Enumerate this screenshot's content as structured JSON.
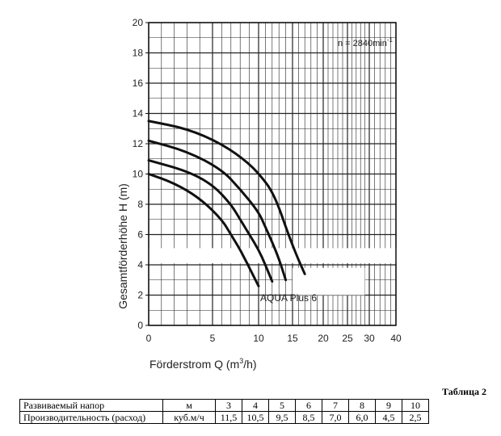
{
  "chart_data": {
    "type": "line",
    "annotation": "n = 2840min",
    "annotation_sup": "-1",
    "xlabel": "Förderstrom  Q (m",
    "xlabel_sup": "3",
    "xlabel_end": "/h)",
    "ylabel": "Gesamtförderhöhe   H (m)",
    "y_ticks": [
      "0",
      "2",
      "4",
      "6",
      "8",
      "10",
      "12",
      "14",
      "16",
      "18",
      "20"
    ],
    "x_ticks": [
      "0",
      "5",
      "10",
      "15",
      "20",
      "25",
      "30",
      "40"
    ],
    "ylim": [
      0,
      20
    ],
    "x_scale": "non-linear (expanded 0–15, compressed 15–40)",
    "grid": true,
    "curve_label": "AQUA  Plus 6",
    "series": [
      {
        "x": [
          0,
          2,
          4,
          6,
          7,
          8,
          8.5,
          9,
          9.5,
          10
        ],
        "y": [
          10,
          9.4,
          8.4,
          7,
          6,
          5,
          4.4,
          3.8,
          3.2,
          2.6
        ]
      },
      {
        "x": [
          0,
          3,
          5,
          7,
          8,
          9,
          10,
          11,
          12
        ],
        "y": [
          10.9,
          10.2,
          9.3,
          8,
          7,
          6,
          5,
          4,
          2.9
        ]
      },
      {
        "x": [
          0,
          3,
          6,
          8,
          10,
          11,
          12,
          13,
          14
        ],
        "y": [
          12.2,
          11.5,
          10.3,
          9,
          7.5,
          6.5,
          5.5,
          4.4,
          3
        ]
      },
      {
        "x": [
          0,
          3,
          6,
          9,
          11,
          12,
          13,
          14,
          15,
          16,
          17
        ],
        "y": [
          13.5,
          13,
          12,
          10.7,
          9.5,
          8.8,
          7.8,
          6.5,
          5.3,
          4.3,
          3.4
        ]
      }
    ]
  },
  "table": {
    "caption": "Таблица 2",
    "rows": [
      {
        "label": "Развиваемый напор",
        "unit": "м",
        "values": [
          "3",
          "4",
          "5",
          "6",
          "7",
          "8",
          "9",
          "10"
        ]
      },
      {
        "label": "Производительность (расход)",
        "unit": "куб.м/ч",
        "values": [
          "11,5",
          "10,5",
          "9,5",
          "8,5",
          "7,0",
          "6,0",
          "4,5",
          "2,5"
        ]
      }
    ]
  }
}
